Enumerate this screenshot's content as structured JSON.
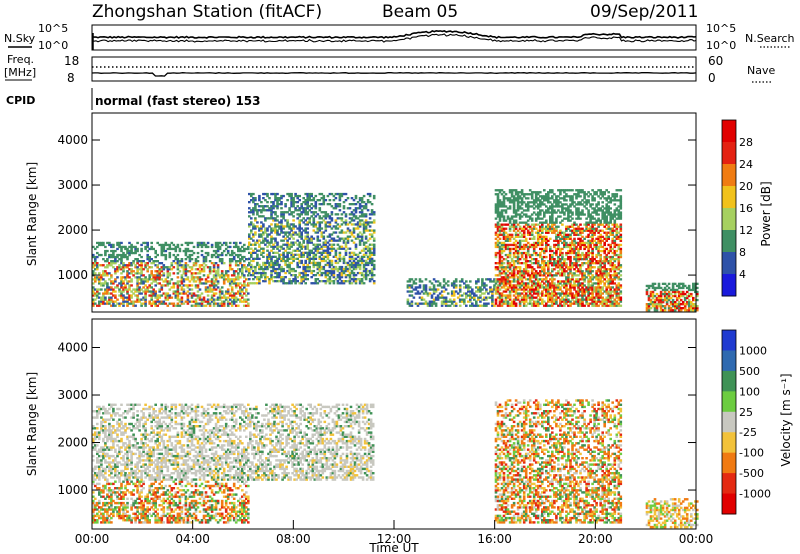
{
  "header": {
    "title": "Zhongshan Station (fitACF)",
    "beam": "Beam 05",
    "date": "09/Sep/2011"
  },
  "strip_labels": {
    "nsky": "N.Sky",
    "nsearch": "N.Search",
    "freq_line1": "Freq.",
    "freq_line2": "[MHz]",
    "nave": "Nave",
    "cpid": "CPID",
    "noise_tick_hi": "10^5",
    "noise_tick_lo": "10^0",
    "freq_tick_hi": "18",
    "freq_tick_lo": "8",
    "nave_tick_hi": "60",
    "nave_tick_lo": "0"
  },
  "cpid_text": "normal (fast stereo) 153",
  "chart_data": [
    {
      "type": "heatmap",
      "panel": "power",
      "ylabel": "Slant Range [km]",
      "xlabel": "",
      "xlim": [
        "00:00",
        "24:00"
      ],
      "ylim": [
        180,
        4600
      ],
      "y_ticks": [
        "1000",
        "2000",
        "3000",
        "4000"
      ],
      "colorbar_label": "Power [dB]",
      "colorbar_ticks": [
        "4",
        "8",
        "12",
        "16",
        "20",
        "24",
        "28"
      ],
      "colorbar_range": [
        0,
        30
      ],
      "colors": [
        "#1a1adc",
        "#2e52a8",
        "#3f8f63",
        "#a6d060",
        "#f1c21c",
        "#f07c12",
        "#e42212",
        "#e10000"
      ],
      "echo_regions": [
        {
          "t_start": 0.0,
          "t_end": 6.2,
          "range_start": 300,
          "range_end": 1700,
          "level": "medium-high"
        },
        {
          "t_start": 6.2,
          "t_end": 11.2,
          "range_start": 800,
          "range_end": 2800,
          "level": "medium"
        },
        {
          "t_start": 12.5,
          "t_end": 16.0,
          "range_start": 300,
          "range_end": 900,
          "level": "medium"
        },
        {
          "t_start": 16.0,
          "t_end": 21.0,
          "range_start": 300,
          "range_end": 2900,
          "level": "high"
        },
        {
          "t_start": 22.0,
          "t_end": 24.0,
          "range_start": 200,
          "range_end": 800,
          "level": "high"
        }
      ]
    },
    {
      "type": "heatmap",
      "panel": "velocity",
      "ylabel": "Slant Range [km]",
      "xlabel": "Time UT",
      "xlim": [
        "00:00",
        "24:00"
      ],
      "ylim": [
        180,
        4600
      ],
      "x_ticks": [
        "00:00",
        "04:00",
        "08:00",
        "12:00",
        "16:00",
        "20:00",
        "00:00"
      ],
      "y_ticks": [
        "1000",
        "2000",
        "3000",
        "4000"
      ],
      "colorbar_label": "Velocity [m s⁻¹]",
      "colorbar_ticks": [
        "1000",
        "500",
        "100",
        "25",
        "-25",
        "-100",
        "-500",
        "-1000"
      ],
      "colors": [
        "#1f3ad0",
        "#2f6ab0",
        "#3f9256",
        "#6ccc40",
        "#c8c8c0",
        "#f2c23a",
        "#f07a12",
        "#e42a12",
        "#e10000"
      ],
      "echo_regions": [
        {
          "t_start": 0.0,
          "t_end": 6.2,
          "range_start": 300,
          "range_end": 1200,
          "velocity": "-100 to -500"
        },
        {
          "t_start": 0.0,
          "t_end": 11.2,
          "range_start": 1200,
          "range_end": 2800,
          "velocity": "-25 to 25"
        },
        {
          "t_start": 16.0,
          "t_end": 21.0,
          "range_start": 300,
          "range_end": 2900,
          "velocity": "-100 to -500"
        },
        {
          "t_start": 22.0,
          "t_end": 24.0,
          "range_start": 200,
          "range_end": 800,
          "velocity": "-25 to -100"
        }
      ]
    }
  ]
}
